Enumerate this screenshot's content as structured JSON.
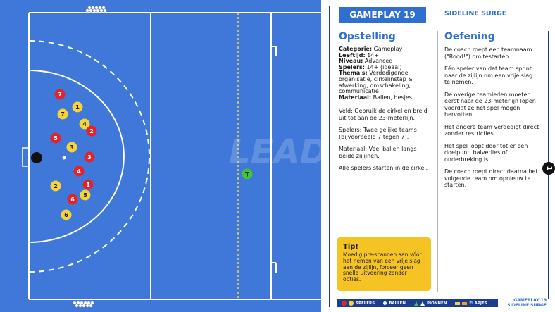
{
  "header": {
    "gameplay_tab": "GAMEPLAY 19",
    "title": "SIDELINE SURGE"
  },
  "field": {
    "watermark": "LEAD",
    "coach_marker": "T",
    "colors": {
      "field_blue": "#3f78d8",
      "line_white": "#ffffff",
      "center_line": "#f7d54a",
      "team_red": "#e3232a",
      "team_yellow": "#f6d338",
      "coach_green": "#3cc63c"
    },
    "players": [
      {
        "team": "red",
        "label": "7"
      },
      {
        "team": "yellow",
        "label": "1"
      },
      {
        "team": "yellow",
        "label": "7"
      },
      {
        "team": "yellow",
        "label": "4"
      },
      {
        "team": "red",
        "label": "2"
      },
      {
        "team": "red",
        "label": "5"
      },
      {
        "team": "yellow",
        "label": "3"
      },
      {
        "team": "red",
        "label": "3"
      },
      {
        "team": "red",
        "label": "4"
      },
      {
        "team": "yellow",
        "label": "2"
      },
      {
        "team": "red",
        "label": "1"
      },
      {
        "team": "yellow",
        "label": "5"
      },
      {
        "team": "red",
        "label": "6"
      },
      {
        "team": "yellow",
        "label": "6"
      }
    ]
  },
  "setup": {
    "heading": "Opstelling",
    "meta": [
      {
        "label": "Categorie:",
        "value": " Gameplay"
      },
      {
        "label": "Leeftijd:",
        "value": " 14+"
      },
      {
        "label": "Niveau:",
        "value": " Advanced"
      },
      {
        "label": "Spelers:",
        "value": " 14+ (ideaal)"
      },
      {
        "label": "Thema's:",
        "value": " Verdedigende organisatie, cirkelinstap & afwerking, omschakeling, communicatie"
      },
      {
        "label": "Materiaal:",
        "value": " Ballen, hesjes"
      }
    ],
    "paragraphs": [
      "Veld: Gebruik de cirkel en breid uit tot aan de 23-meterlijn.",
      "Spelers: Twee gelijke teams (bijvoorbeeld 7 tegen 7).",
      "Materiaal: Veel ballen langs beide zijlijnen.",
      "Alle spelers starten in de cirkel."
    ]
  },
  "exercise": {
    "heading": "Oefening",
    "paragraphs": [
      "De coach roept een teamnaam (\"Rood!\") om testarten.",
      "Eén speler van dat team sprint naar de zijlijn om een vrije slag te nemen.",
      "De overige teamleden moeten eerst naar de 23-meterlijn lopen voordat ze het spel mogen hervotten.",
      "Het andere team verdedigt direct zonder restricties.",
      "Het spel loopt door tot er een doelpunt, balverlies of onderbreking is.",
      "De coach roept direct daarna het volgende team om opnieuw te starten."
    ]
  },
  "tip": {
    "title": "Tip!",
    "text": "Moedig pre-scannen aan vóór het nemen van een vrije slag aan de zijlijn, forceer geen snelle uitvoering zonder opties."
  },
  "legend": {
    "players": "SPELERS",
    "balls": "BALLEN",
    "cones": "PIONNEN",
    "flags": "FLAPJES"
  },
  "page": {
    "number": "1",
    "footer_line1": "GAMEPLAY 19",
    "footer_line2": "SIDELINE SURGE"
  }
}
